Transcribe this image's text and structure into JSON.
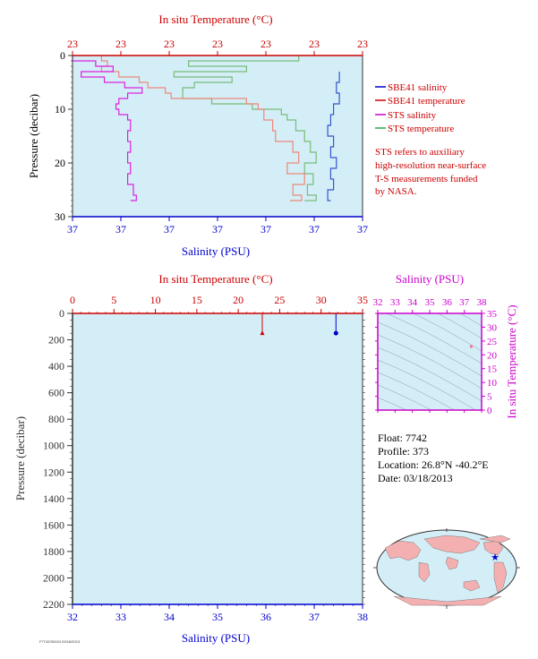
{
  "colors": {
    "panel_bg": "#d4eef8",
    "temperature_axis": "#cc0000",
    "salinity_axis": "#0000cc",
    "pressure_axis": "#333333",
    "ts_axis": "#cc00cc",
    "sbe_salinity": "#3355cc",
    "sbe_temperature": "#ee8877",
    "sts_salinity": "#dd22dd",
    "sts_temperature": "#77bb77"
  },
  "top_panel": {
    "temp_title": "In situ Temperature (°C)",
    "temp_ticks": [
      "23",
      "23",
      "23",
      "23",
      "23",
      "23",
      "23"
    ],
    "sal_title": "Salinity (PSU)",
    "sal_ticks": [
      "37",
      "37",
      "37",
      "37",
      "37",
      "37",
      "37"
    ],
    "pressure_title": "Pressure (decibar)",
    "pressure_ticks": [
      "0",
      "10",
      "20",
      "30"
    ],
    "legend": [
      {
        "label": "SBE41 salinity",
        "color": "#0000cc"
      },
      {
        "label": "SBE41 temperature",
        "color": "#cc0000"
      },
      {
        "label": "STS salinity",
        "color": "#cc00cc"
      },
      {
        "label": "STS temperature",
        "color": "#22aa44"
      }
    ],
    "note_lines": [
      "STS refers to auxiliary",
      "high-resolution near-surface",
      "T-S measurements funded",
      "by NASA."
    ]
  },
  "bottom_panel": {
    "temp_title": "In situ Temperature (°C)",
    "temp_ticks": [
      "0",
      "5",
      "10",
      "15",
      "20",
      "25",
      "30",
      "35"
    ],
    "sal_title": "Salinity (PSU)",
    "sal_ticks": [
      "32",
      "33",
      "34",
      "35",
      "36",
      "37",
      "38"
    ],
    "pressure_title": "Pressure (decibar)",
    "pressure_ticks": [
      "0",
      "200",
      "400",
      "600",
      "800",
      "1000",
      "1200",
      "1400",
      "1600",
      "1800",
      "2000",
      "2200"
    ]
  },
  "ts_panel": {
    "sal_title": "Salinity (PSU)",
    "sal_ticks": [
      "32",
      "33",
      "34",
      "35",
      "36",
      "37",
      "38"
    ],
    "temp_title": "In situ Temperature (°C)",
    "temp_ticks": [
      "0",
      "5",
      "10",
      "15",
      "20",
      "25",
      "30",
      "35"
    ]
  },
  "info": {
    "float": "Float:  7742",
    "profile": "Profile:  373",
    "location": "Location:  26.8°N  -40.2°E",
    "date": "Date:  03/18/2013"
  },
  "footer_text": "F7742/S0024 03/18/2013",
  "chart_data": [
    {
      "type": "line",
      "title": "",
      "x_axis_top": "In situ Temperature (°C)",
      "x_axis_bottom": "Salinity (PSU)",
      "ylabel": "Pressure (decibar)",
      "ylim": [
        30,
        0
      ],
      "y_reversed": true,
      "series": [
        {
          "name": "SBE41 salinity",
          "axis": "salinity",
          "pressure": [
            3,
            5,
            7,
            9,
            11,
            13,
            15,
            17,
            19,
            21,
            23,
            25,
            27
          ],
          "relative_position": [
            0.92,
            0.91,
            0.92,
            0.9,
            0.89,
            0.88,
            0.9,
            0.89,
            0.91,
            0.89,
            0.9,
            0.88,
            0.89
          ]
        },
        {
          "name": "SBE41 temperature",
          "axis": "temperature",
          "pressure": [
            0,
            1,
            2,
            3,
            4,
            5,
            6,
            7,
            8,
            9,
            10,
            12,
            14,
            16,
            18,
            20,
            22,
            24,
            26,
            27
          ],
          "relative_position": [
            0.1,
            0.12,
            0.1,
            0.16,
            0.23,
            0.26,
            0.32,
            0.34,
            0.6,
            0.64,
            0.66,
            0.69,
            0.7,
            0.76,
            0.78,
            0.74,
            0.8,
            0.76,
            0.79,
            0.75
          ]
        },
        {
          "name": "STS salinity",
          "axis": "salinity",
          "pressure": [
            0,
            1,
            2,
            3,
            4,
            5,
            6,
            7,
            8,
            9,
            10,
            11,
            12,
            14,
            16,
            18,
            20,
            22,
            24,
            26,
            27
          ],
          "relative_position": [
            0.0,
            0.08,
            0.14,
            0.03,
            0.11,
            0.18,
            0.24,
            0.19,
            0.16,
            0.15,
            0.16,
            0.19,
            0.2,
            0.19,
            0.2,
            0.19,
            0.2,
            0.19,
            0.21,
            0.22,
            0.2
          ]
        },
        {
          "name": "STS temperature",
          "axis": "temperature",
          "pressure": [
            0,
            1,
            2,
            3,
            4,
            5,
            6,
            8,
            9,
            10,
            11,
            12,
            14,
            16,
            18,
            20,
            22,
            24,
            26,
            27
          ],
          "relative_position": [
            0.78,
            0.4,
            0.6,
            0.35,
            0.55,
            0.42,
            0.38,
            0.48,
            0.62,
            0.72,
            0.74,
            0.77,
            0.8,
            0.82,
            0.84,
            0.8,
            0.83,
            0.81,
            0.84,
            0.8
          ]
        }
      ]
    },
    {
      "type": "line",
      "title": "",
      "x_axis_top": "In situ Temperature (°C)",
      "xlim_top": [
        0,
        35
      ],
      "x_axis_bottom": "Salinity (PSU)",
      "xlim_bottom": [
        32,
        38
      ],
      "ylabel": "Pressure (decibar)",
      "ylim": [
        2200,
        0
      ],
      "y_reversed": true,
      "series": [
        {
          "name": "Temperature",
          "axis": "temperature",
          "pressure": [
            0,
            150
          ],
          "values": [
            22.9,
            22.9
          ]
        },
        {
          "name": "Salinity",
          "axis": "salinity",
          "pressure": [
            0,
            150
          ],
          "values": [
            37.45,
            37.45
          ]
        }
      ]
    },
    {
      "type": "scatter",
      "title": "",
      "xlabel": "Salinity (PSU)",
      "xlim": [
        32,
        38
      ],
      "ylabel": "In situ Temperature (°C)",
      "ylim": [
        0,
        35
      ],
      "points": [
        {
          "x": 37.4,
          "y": 23
        }
      ]
    }
  ]
}
